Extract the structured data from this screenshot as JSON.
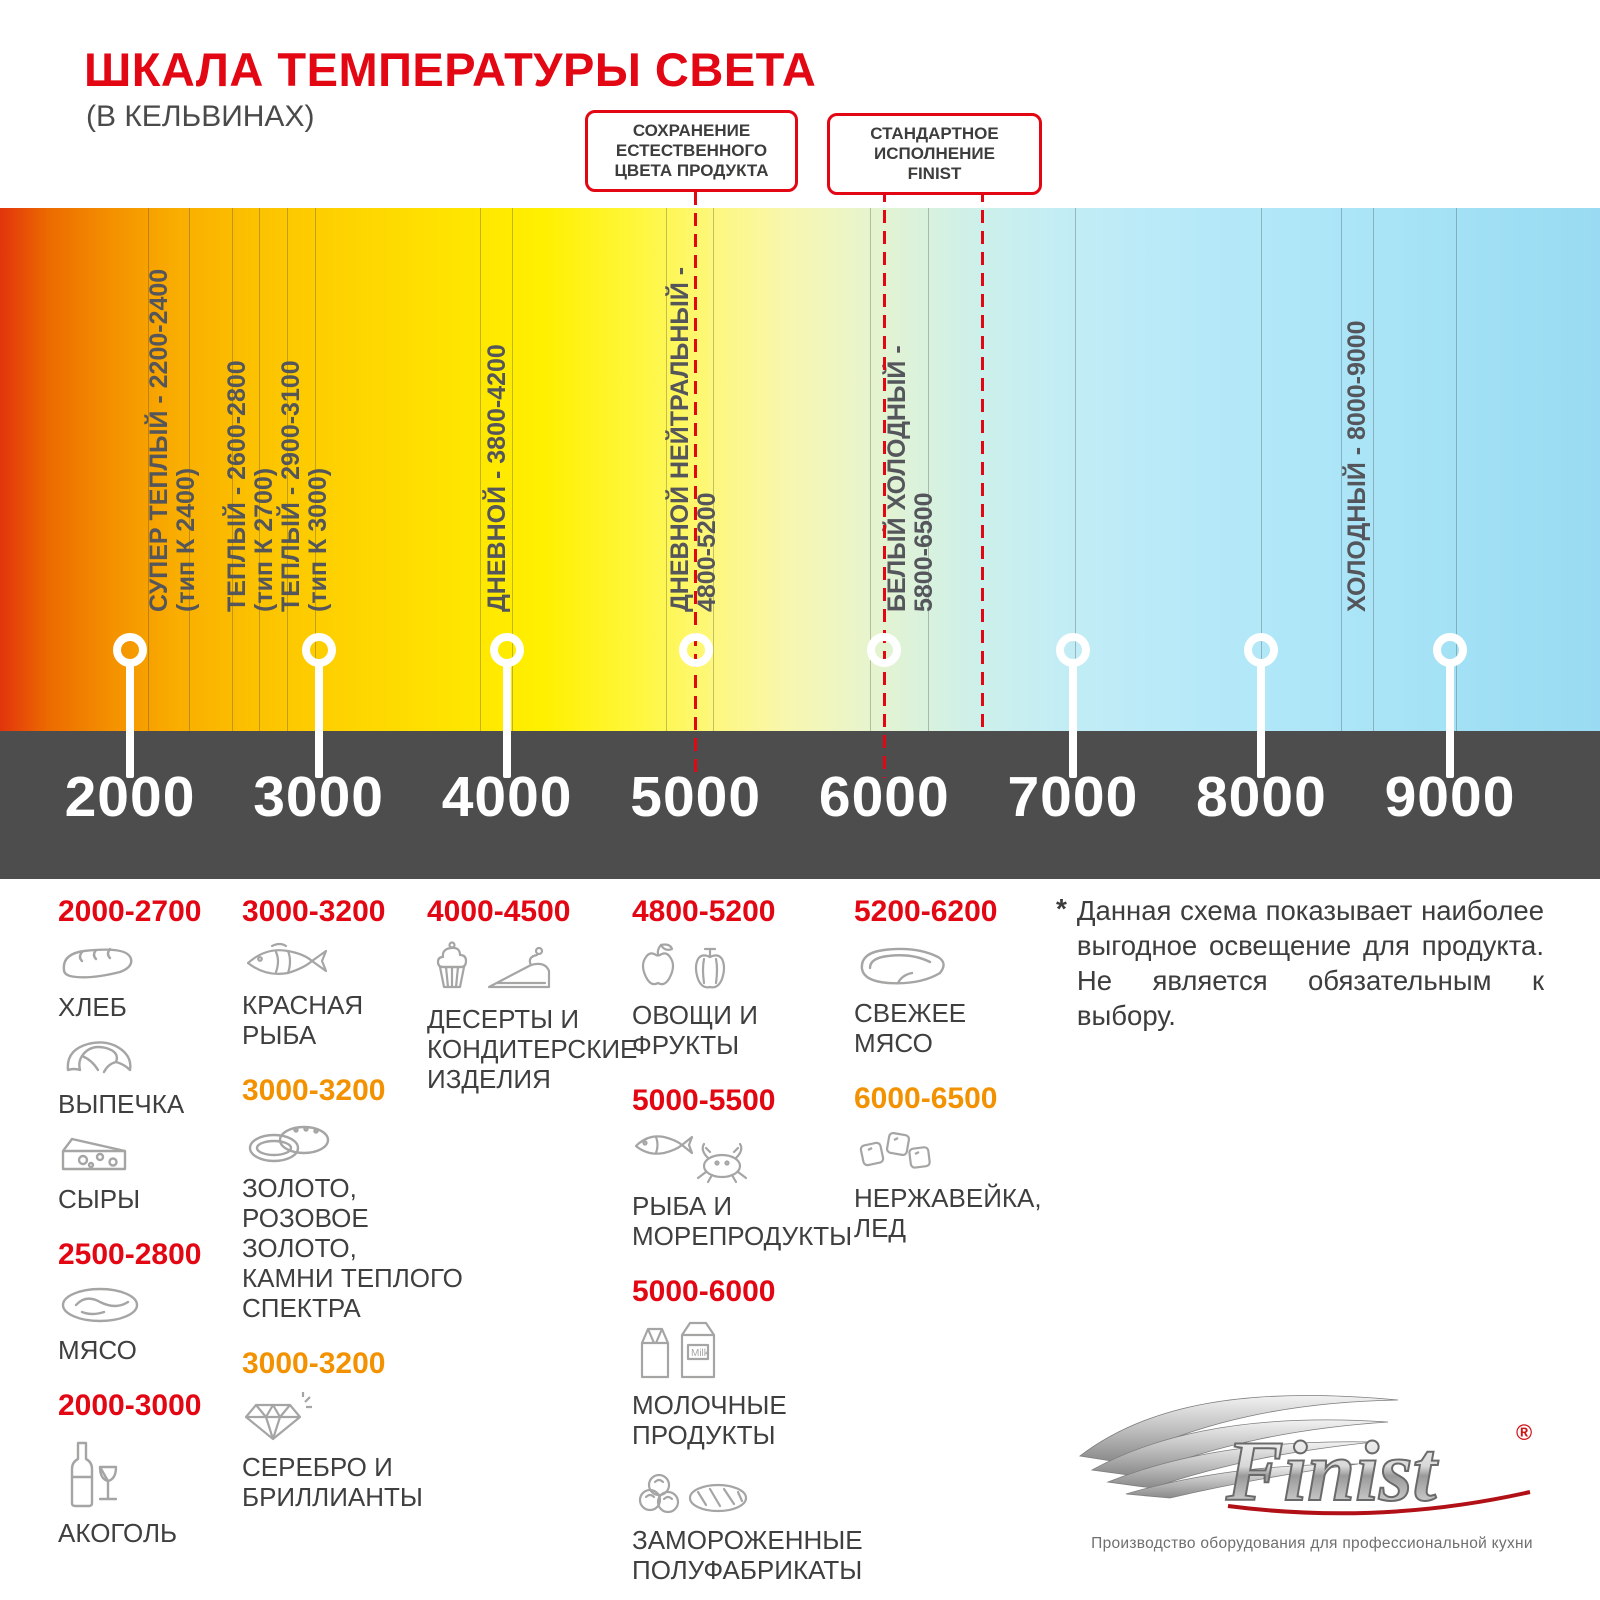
{
  "colors": {
    "red": "#e30613",
    "orange": "#f39200",
    "gray_text": "#3f3f3e",
    "label_gray": "#54565b",
    "band_dark": "#4d4d4d",
    "icon_gray": "#a5a5a4"
  },
  "header": {
    "title": "ШКАЛА ТЕМПЕРАТУРЫ СВЕТА",
    "subtitle": "(В КЕЛЬВИНАХ)"
  },
  "callouts": [
    {
      "text": "СОХРАНЕНИЕ\nЕСТЕСТВЕННОГО\nЦВЕТА ПРОДУКТА",
      "pointer_k": [
        5000
      ]
    },
    {
      "text": "СТАНДАРТНОЕ\nИСПОЛНЕНИЕ\nFINIST",
      "pointer_k": [
        6000,
        6520
      ]
    }
  ],
  "scale": {
    "unit": "K",
    "k_min": 2000,
    "k_max": 9000,
    "ticks": [
      2000,
      3000,
      4000,
      5000,
      6000,
      7000,
      8000,
      9000
    ],
    "gridlines": [
      2095,
      2310,
      2540,
      2685,
      2830,
      2980,
      3855,
      4025,
      4840,
      5090,
      5925,
      6230,
      7010,
      8000,
      8420,
      8590,
      9030
    ],
    "labels": [
      {
        "k": 2230,
        "lines": [
          "СУПЕР ТЕПЛЫЙ - 2200-2400",
          "(тип К 2400)"
        ]
      },
      {
        "k": 2640,
        "lines": [
          "ТЕПЛЫЙ - 2600-2800",
          "(тип К 2700)"
        ]
      },
      {
        "k": 2930,
        "lines": [
          "ТЕПЛЫЙ - 2900-3100",
          "(тип К 3000)"
        ]
      },
      {
        "k": 3950,
        "lines": [
          "ДНЕВНОЙ - 3800-4200"
        ]
      },
      {
        "k": 4990,
        "lines": [
          "ДНЕВНОЙ НЕЙТРАЛЬНЫЙ -",
          "4800-5200"
        ]
      },
      {
        "k": 6140,
        "lines": [
          "БЕЛЫЙ ХОЛОДНЫЙ -",
          "5800-6500"
        ]
      },
      {
        "k": 8510,
        "lines": [
          "ХОЛОДНЫЙ - 8000-9000"
        ]
      }
    ]
  },
  "food": {
    "columns": [
      {
        "items": [
          {
            "kind": "range",
            "color": "red",
            "text": "2000-2700"
          },
          {
            "kind": "item",
            "icon": "bread-icon",
            "label": "ХЛЕБ"
          },
          {
            "kind": "item",
            "icon": "croissant-icon",
            "label": "ВЫПЕЧКА"
          },
          {
            "kind": "item",
            "icon": "cheese-icon",
            "label": "СЫРЫ"
          },
          {
            "kind": "range",
            "color": "red",
            "text": "2500-2800"
          },
          {
            "kind": "item",
            "icon": "meat-icon",
            "label": "МЯСО"
          },
          {
            "kind": "range",
            "color": "red",
            "text": "2000-3000"
          },
          {
            "kind": "item",
            "icon": "alcohol-icon",
            "label": "АКОГОЛЬ"
          }
        ]
      },
      {
        "items": [
          {
            "kind": "range",
            "color": "red",
            "text": "3000-3200"
          },
          {
            "kind": "item",
            "icon": "fish-icon",
            "label": "КРАСНАЯ\nРЫБА"
          },
          {
            "kind": "range",
            "color": "orange",
            "text": "3000-3200"
          },
          {
            "kind": "item",
            "icon": "rings-icon",
            "label": "ЗОЛОТО,\nРОЗОВОЕ ЗОЛОТО,\nКАМНИ ТЕПЛОГО\nСПЕКТРА"
          },
          {
            "kind": "range",
            "color": "orange",
            "text": "3000-3200"
          },
          {
            "kind": "item",
            "icon": "diamond-icon",
            "label": "СЕРЕБРО И\nБРИЛЛИАНТЫ"
          }
        ]
      },
      {
        "items": [
          {
            "kind": "range",
            "color": "red",
            "text": "4000-4500"
          },
          {
            "kind": "item",
            "icon": "desserts-icon",
            "label": "ДЕСЕРТЫ И\nКОНДИТЕРСКИЕ\nИЗДЕЛИЯ"
          }
        ]
      },
      {
        "items": [
          {
            "kind": "range",
            "color": "red",
            "text": "4800-5200"
          },
          {
            "kind": "item",
            "icon": "vegetables-icon",
            "label": "ОВОЩИ И\nФРУКТЫ"
          },
          {
            "kind": "range",
            "color": "red",
            "text": "5000-5500"
          },
          {
            "kind": "item",
            "icon": "seafood-icon",
            "label": "РЫБА И\nМОРЕПРОДУКТЫ"
          },
          {
            "kind": "range",
            "color": "red",
            "text": "5000-6000"
          },
          {
            "kind": "item",
            "icon": "dairy-icon",
            "label": "МОЛОЧНЫЕ ПРОДУКТЫ"
          },
          {
            "kind": "item",
            "icon": "frozen-icon",
            "label": "ЗАМОРОЖЕННЫЕ\nПОЛУФАБРИКАТЫ"
          }
        ]
      },
      {
        "items": [
          {
            "kind": "range",
            "color": "red",
            "text": "5200-6200"
          },
          {
            "kind": "item",
            "icon": "fresh-meat-icon",
            "label": "СВЕЖЕЕ\nМЯСО"
          },
          {
            "kind": "range",
            "color": "orange",
            "text": "6000-6500"
          },
          {
            "kind": "item",
            "icon": "ice-icon",
            "label": "НЕРЖАВЕЙКА,\nЛЕД"
          }
        ]
      }
    ]
  },
  "icons_text": {
    "milk": "Milk"
  },
  "footnote": {
    "mark": "*",
    "text": "Данная схема показывает наиболее выгодное освещение для продукта. Не является обязательным к выбору."
  },
  "logo": {
    "name": "Finist",
    "reg": "®",
    "caption": "Производство оборудования для профессиональной кухни"
  }
}
